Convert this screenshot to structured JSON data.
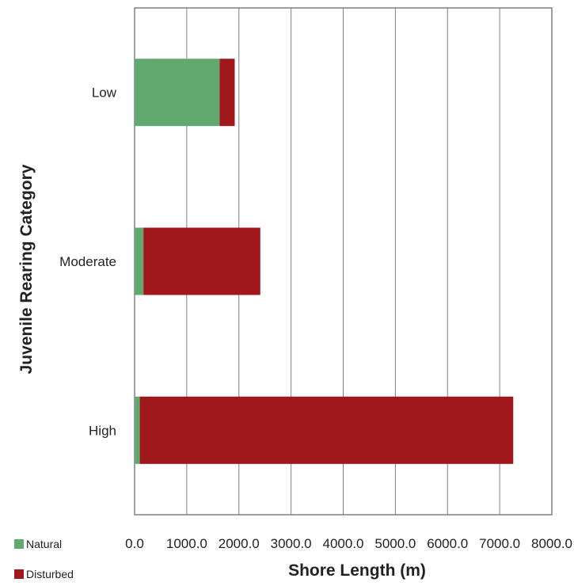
{
  "chart_data": {
    "type": "bar",
    "orientation": "horizontal",
    "stacked": true,
    "categories": [
      "Low",
      "Moderate",
      "High"
    ],
    "series": [
      {
        "name": "Natural",
        "color": "#62a96f",
        "values": [
          1630,
          170,
          100
        ]
      },
      {
        "name": "Disturbed",
        "color": "#a0181b",
        "values": [
          290,
          2240,
          7160
        ]
      }
    ],
    "xlabel": "Shore Length (m)",
    "ylabel": "Juvenile Rearing Category",
    "xlim": [
      0,
      8000
    ],
    "xticks": [
      "0.0",
      "1000.0",
      "2000.0",
      "3000.0",
      "4000.0",
      "5000.0",
      "6000.0",
      "7000.0",
      "8000.0"
    ],
    "grid": "vertical",
    "legend_position": "bottom-left"
  }
}
